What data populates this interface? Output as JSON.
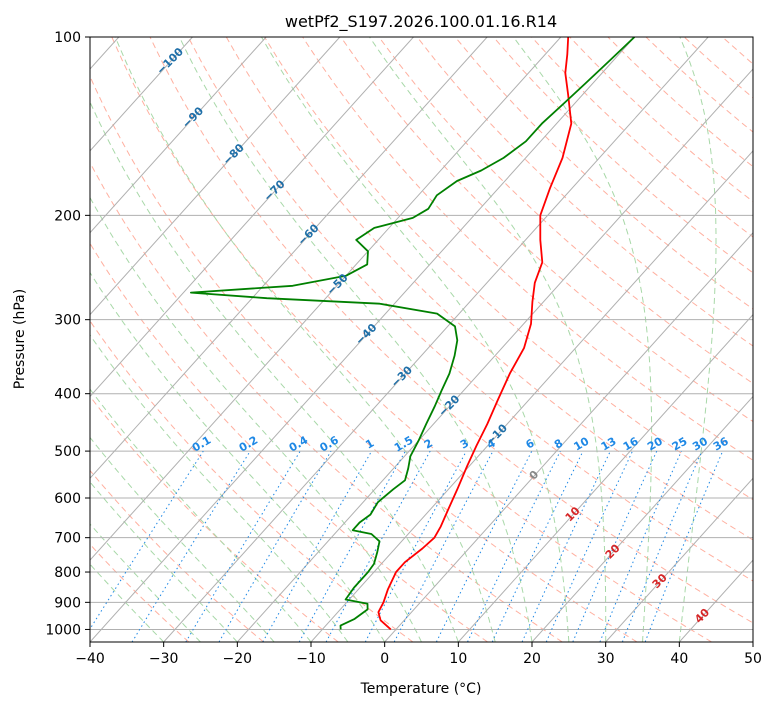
{
  "chart_data": {
    "type": "line",
    "title": "wetPf2_S197.2026.100.01.16.R14",
    "xlabel": "Temperature (°C)",
    "ylabel": "Pressure (hPa)",
    "xlim": [
      -40,
      50
    ],
    "ylim": [
      1000,
      100
    ],
    "x_ticks": [
      -40,
      -30,
      -20,
      -10,
      0,
      10,
      20,
      30,
      40,
      50
    ],
    "x_tick_labels": [
      "−40",
      "−30",
      "−20",
      "−10",
      "0",
      "10",
      "20",
      "30",
      "40",
      "50"
    ],
    "y_scale": "log",
    "y_ticks": [
      100,
      200,
      300,
      400,
      500,
      600,
      700,
      800,
      900,
      1000
    ],
    "y_tick_labels": [
      "100",
      "200",
      "300",
      "400",
      "500",
      "600",
      "700",
      "800",
      "900",
      "1000"
    ],
    "grid": true,
    "skew": true,
    "series": [
      {
        "kind": "temperature",
        "color": "#ff0000",
        "points": [
          [
            -0.7,
            1000
          ],
          [
            -3.2,
            965
          ],
          [
            -4.5,
            935
          ],
          [
            -5.0,
            900
          ],
          [
            -6.0,
            855
          ],
          [
            -7.0,
            800
          ],
          [
            -7.0,
            770
          ],
          [
            -6.3,
            730
          ],
          [
            -6.0,
            700
          ],
          [
            -6.5,
            670
          ],
          [
            -7.5,
            630
          ],
          [
            -8.8,
            580
          ],
          [
            -10.3,
            530
          ],
          [
            -11.5,
            490
          ],
          [
            -12.7,
            450
          ],
          [
            -14.2,
            410
          ],
          [
            -15.8,
            370
          ],
          [
            -17.0,
            335
          ],
          [
            -19.0,
            305
          ],
          [
            -21.5,
            280
          ],
          [
            -23.5,
            260
          ],
          [
            -25.0,
            240
          ],
          [
            -28.0,
            220
          ],
          [
            -31.0,
            200
          ],
          [
            -33.0,
            180
          ],
          [
            -35.0,
            160
          ],
          [
            -38.0,
            140
          ],
          [
            -42.0,
            125
          ],
          [
            -45.0,
            115
          ],
          [
            -47.0,
            107
          ],
          [
            -49.0,
            100
          ]
        ]
      },
      {
        "kind": "dewpoint",
        "color": "#008000",
        "points": [
          [
            -7.5,
            1000
          ],
          [
            -8.0,
            985
          ],
          [
            -6.9,
            960
          ],
          [
            -6.3,
            925
          ],
          [
            -7.0,
            905
          ],
          [
            -10.5,
            890
          ],
          [
            -10.8,
            850
          ],
          [
            -10.8,
            800
          ],
          [
            -11.0,
            775
          ],
          [
            -12.0,
            740
          ],
          [
            -13.0,
            710
          ],
          [
            -15.0,
            690
          ],
          [
            -18.0,
            680
          ],
          [
            -18.0,
            660
          ],
          [
            -17.5,
            640
          ],
          [
            -18.0,
            610
          ],
          [
            -17.5,
            580
          ],
          [
            -17.0,
            560
          ],
          [
            -18.0,
            535
          ],
          [
            -19.2,
            510
          ],
          [
            -20.0,
            480
          ],
          [
            -21.0,
            450
          ],
          [
            -22.0,
            420
          ],
          [
            -23.0,
            395
          ],
          [
            -24.0,
            370
          ],
          [
            -25.5,
            345
          ],
          [
            -27.0,
            325
          ],
          [
            -29.0,
            308
          ],
          [
            -33.0,
            293
          ],
          [
            -42.0,
            282
          ],
          [
            -58.0,
            276
          ],
          [
            -69.0,
            270
          ],
          [
            -56.0,
            263
          ],
          [
            -50.0,
            253
          ],
          [
            -48.5,
            242
          ],
          [
            -50.0,
            230
          ],
          [
            -53.0,
            220
          ],
          [
            -52.0,
            210
          ],
          [
            -48.0,
            202
          ],
          [
            -47.0,
            195
          ],
          [
            -47.5,
            185
          ],
          [
            -46.5,
            175
          ],
          [
            -44.5,
            168
          ],
          [
            -43.0,
            160
          ],
          [
            -42.0,
            150
          ],
          [
            -42.0,
            140
          ],
          [
            -41.5,
            130
          ],
          [
            -41.0,
            120
          ],
          [
            -40.5,
            110
          ],
          [
            -40.0,
            100
          ]
        ]
      }
    ],
    "isotherm_step": 10,
    "dry_adiabat_labels": [
      "−100",
      "−90",
      "−80",
      "−70",
      "−60",
      "−50",
      "−40",
      "−30",
      "−20",
      "−10",
      "0",
      "10",
      "20",
      "30",
      "40"
    ],
    "mixing_ratio_labels": [
      "0.1",
      "0.2",
      "0.4",
      "0.6",
      "1",
      "1.5",
      "2",
      "3",
      "4",
      "6",
      "8",
      "10",
      "13",
      "16",
      "20",
      "25",
      "30",
      "36"
    ],
    "mixing_ratio_values": [
      0.1,
      0.2,
      0.4,
      0.6,
      1,
      1.5,
      2,
      3,
      4,
      6,
      8,
      10,
      13,
      16,
      20,
      25,
      30,
      36
    ],
    "colors": {
      "isotherm": "#b0b0b0",
      "isobar": "#b0b0b0",
      "dry_adiabat": "#ffb0a0",
      "moist_adiabat": "#a8d8a8",
      "mixing_ratio": "#1e88e5",
      "label_cold": "#1f6fa8",
      "label_warm": "#d62728",
      "label_zero": "#888888"
    }
  }
}
